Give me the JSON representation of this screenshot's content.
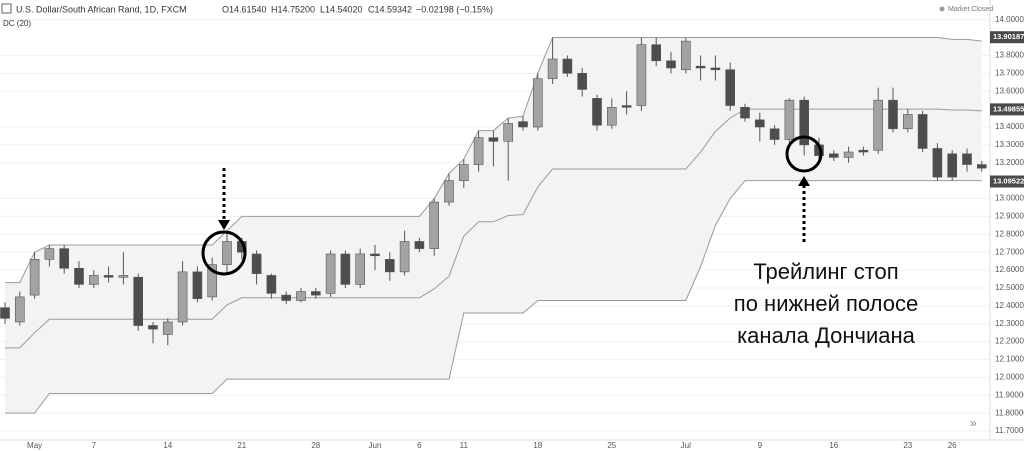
{
  "header": {
    "title": "U.S. Dollar/South African Rand, 1D, FXCM",
    "ohlc": [
      "O14.61540",
      "H14.75200",
      "L14.54020",
      "C14.59342",
      "−0.02198 (−0.15%)"
    ],
    "indicator": "DC (20)",
    "status": "Market Closed"
  },
  "chart_data": {
    "type": "candlestick",
    "categories": [
      null,
      null,
      "May",
      null,
      null,
      null,
      "7",
      null,
      null,
      null,
      null,
      "14",
      null,
      null,
      null,
      null,
      "21",
      null,
      null,
      null,
      null,
      "28",
      null,
      null,
      null,
      "Jun",
      null,
      null,
      "6",
      null,
      null,
      "11",
      null,
      null,
      null,
      null,
      "18",
      null,
      null,
      null,
      null,
      "25",
      null,
      null,
      null,
      null,
      "Jul",
      null,
      null,
      null,
      null,
      "9",
      null,
      null,
      null,
      null,
      "16",
      null,
      null,
      null,
      null,
      "23",
      null,
      null,
      "26",
      null,
      null
    ],
    "open": [
      12.39,
      12.31,
      12.46,
      12.66,
      12.72,
      12.61,
      12.52,
      12.57,
      12.56,
      12.56,
      12.29,
      12.24,
      12.31,
      12.59,
      12.45,
      12.63,
      12.76,
      12.69,
      12.57,
      12.46,
      12.43,
      12.48,
      12.47,
      12.69,
      12.52,
      12.69,
      12.66,
      12.59,
      12.76,
      12.72,
      12.98,
      13.1,
      13.19,
      13.34,
      13.32,
      13.43,
      13.4,
      13.67,
      13.78,
      13.7,
      13.56,
      13.41,
      13.52,
      13.52,
      13.86,
      13.77,
      13.72,
      13.74,
      13.73,
      13.72,
      13.51,
      13.44,
      13.39,
      13.33,
      13.55,
      13.3,
      13.25,
      13.23,
      13.27,
      13.27,
      13.55,
      13.39,
      13.47,
      13.28,
      13.25,
      13.25,
      13.19
    ],
    "high": [
      12.42,
      12.48,
      12.7,
      12.74,
      12.74,
      12.65,
      12.6,
      12.62,
      12.7,
      12.58,
      12.31,
      12.33,
      12.65,
      12.62,
      12.67,
      12.82,
      12.78,
      12.71,
      12.58,
      12.48,
      12.5,
      12.5,
      12.71,
      12.71,
      12.72,
      12.74,
      12.7,
      12.82,
      12.78,
      13.0,
      13.14,
      13.22,
      13.38,
      13.38,
      13.45,
      13.46,
      13.7,
      13.9,
      13.8,
      13.73,
      13.58,
      13.56,
      13.6,
      13.9,
      13.9,
      13.82,
      13.9,
      13.8,
      13.8,
      13.76,
      13.53,
      13.48,
      13.41,
      13.56,
      13.57,
      13.34,
      13.27,
      13.29,
      13.29,
      13.62,
      13.62,
      13.5,
      13.49,
      13.31,
      13.27,
      13.28,
      13.21
    ],
    "low": [
      12.3,
      12.29,
      12.44,
      12.62,
      12.58,
      12.5,
      12.5,
      12.53,
      12.52,
      12.26,
      12.19,
      12.18,
      12.29,
      12.42,
      12.43,
      12.58,
      12.66,
      12.52,
      12.44,
      12.41,
      12.42,
      12.44,
      12.45,
      12.5,
      12.5,
      12.6,
      12.54,
      12.57,
      12.7,
      12.68,
      12.96,
      13.06,
      13.15,
      13.18,
      13.1,
      13.38,
      13.38,
      13.64,
      13.68,
      13.57,
      13.38,
      13.39,
      13.47,
      13.49,
      13.74,
      13.7,
      13.7,
      13.66,
      13.66,
      13.49,
      13.43,
      13.32,
      13.3,
      13.31,
      13.24,
      13.2,
      13.21,
      13.2,
      13.24,
      13.25,
      13.37,
      13.37,
      13.26,
      13.1,
      13.1,
      13.15,
      13.15
    ],
    "close": [
      12.33,
      12.45,
      12.66,
      12.72,
      12.61,
      12.52,
      12.57,
      12.56,
      12.57,
      12.29,
      12.27,
      12.31,
      12.59,
      12.44,
      12.63,
      12.76,
      12.7,
      12.58,
      12.47,
      12.43,
      12.48,
      12.46,
      12.69,
      12.52,
      12.69,
      12.68,
      12.59,
      12.76,
      12.72,
      12.98,
      13.1,
      13.19,
      13.34,
      13.32,
      13.42,
      13.4,
      13.67,
      13.78,
      13.7,
      13.61,
      13.41,
      13.51,
      13.51,
      13.86,
      13.77,
      13.73,
      13.88,
      13.73,
      13.72,
      13.52,
      13.45,
      13.4,
      13.33,
      13.55,
      13.3,
      13.24,
      13.23,
      13.26,
      13.26,
      13.55,
      13.39,
      13.47,
      13.28,
      13.12,
      13.12,
      13.19,
      13.17
    ],
    "channel_upper": [
      12.53,
      12.53,
      12.7,
      12.74,
      12.74,
      12.74,
      12.74,
      12.74,
      12.74,
      12.74,
      12.74,
      12.74,
      12.74,
      12.74,
      12.74,
      12.82,
      12.9,
      12.9,
      12.9,
      12.9,
      12.9,
      12.9,
      12.9,
      12.9,
      12.9,
      12.9,
      12.9,
      12.9,
      12.9,
      13.0,
      13.14,
      13.22,
      13.38,
      13.38,
      13.45,
      13.46,
      13.7,
      13.9,
      13.9,
      13.9,
      13.9,
      13.9,
      13.9,
      13.9,
      13.9,
      13.9,
      13.9,
      13.9,
      13.9,
      13.9,
      13.9,
      13.9,
      13.9,
      13.9,
      13.9,
      13.9,
      13.9,
      13.9,
      13.9,
      13.9,
      13.9,
      13.9,
      13.9,
      13.9,
      13.89,
      13.89,
      13.88
    ],
    "channel_middle": [
      12.165,
      12.165,
      12.25,
      12.325,
      12.325,
      12.325,
      12.325,
      12.325,
      12.325,
      12.325,
      12.325,
      12.325,
      12.325,
      12.325,
      12.325,
      12.405,
      12.445,
      12.445,
      12.445,
      12.445,
      12.445,
      12.445,
      12.445,
      12.445,
      12.445,
      12.445,
      12.445,
      12.445,
      12.445,
      12.495,
      12.565,
      12.79,
      12.87,
      12.87,
      12.905,
      12.91,
      13.065,
      13.165,
      13.165,
      13.165,
      13.165,
      13.165,
      13.165,
      13.165,
      13.165,
      13.165,
      13.165,
      13.26,
      13.375,
      13.45,
      13.5,
      13.5,
      13.5,
      13.5,
      13.5,
      13.5,
      13.5,
      13.5,
      13.5,
      13.5,
      13.5,
      13.5,
      13.5,
      13.5,
      13.495,
      13.495,
      13.49
    ],
    "channel_lower": [
      11.8,
      11.8,
      11.8,
      11.91,
      11.91,
      11.91,
      11.91,
      11.91,
      11.91,
      11.91,
      11.91,
      11.91,
      11.91,
      11.91,
      11.91,
      11.99,
      11.99,
      11.99,
      11.99,
      11.99,
      11.99,
      11.99,
      11.99,
      11.99,
      11.99,
      11.99,
      11.99,
      11.99,
      11.99,
      11.99,
      11.99,
      12.36,
      12.36,
      12.36,
      12.36,
      12.36,
      12.43,
      12.43,
      12.43,
      12.43,
      12.43,
      12.43,
      12.43,
      12.43,
      12.43,
      12.43,
      12.43,
      12.62,
      12.85,
      13.0,
      13.1,
      13.1,
      13.1,
      13.1,
      13.1,
      13.1,
      13.1,
      13.1,
      13.1,
      13.1,
      13.1,
      13.1,
      13.1,
      13.1,
      13.1,
      13.1,
      13.1
    ],
    "up_color": "#a3a3a3",
    "down_color": "#4d4d4d",
    "channel_color": "#9a9a9a",
    "channel_fill": "#f3f3f3",
    "price_labels": [
      13.90187,
      13.49855,
      13.09522
    ],
    "ylim": [
      11.65,
      14.11
    ],
    "yticks": [
      {
        "value": 11.7,
        "label": "11.70000"
      },
      {
        "value": 11.8,
        "label": "11.80000"
      },
      {
        "value": 11.9,
        "label": "11.90000"
      },
      {
        "value": 12.0,
        "label": "12.00000"
      },
      {
        "value": 12.1,
        "label": "12.10000"
      },
      {
        "value": 12.2,
        "label": "12.20000"
      },
      {
        "value": 12.3,
        "label": "12.30000"
      },
      {
        "value": 12.4,
        "label": "12.40000"
      },
      {
        "value": 12.5,
        "label": "12.50000"
      },
      {
        "value": 12.6,
        "label": "12.60000"
      },
      {
        "value": 12.7,
        "label": "12.70000"
      },
      {
        "value": 12.8,
        "label": "12.80000"
      },
      {
        "value": 12.9,
        "label": "12.90000"
      },
      {
        "value": 13.0,
        "label": "13.00000"
      },
      {
        "value": 13.2,
        "label": "13.20000"
      },
      {
        "value": 13.3,
        "label": "13.30000"
      },
      {
        "value": 13.4,
        "label": "13.40000"
      },
      {
        "value": 13.6,
        "label": "13.60000"
      },
      {
        "value": 13.7,
        "label": "13.70000"
      },
      {
        "value": 13.8,
        "label": "13.80000"
      },
      {
        "value": 14.0,
        "label": "14.00000"
      }
    ],
    "grid": true,
    "annotation": [
      "Трейлинг стоп",
      "по нижней полосе",
      "канала Дончиана"
    ]
  }
}
